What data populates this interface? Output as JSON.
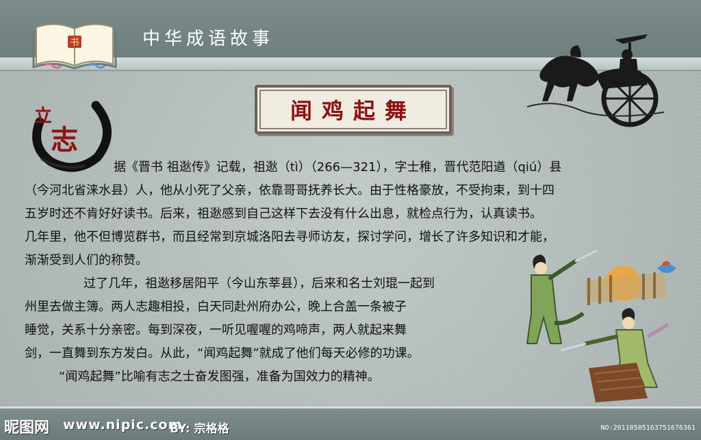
{
  "header": {
    "title": "中华成语故事",
    "book_icon_text": "书"
  },
  "main": {
    "story_title": "闻鸡起舞",
    "seal_text": "立志",
    "paragraphs": [
      {
        "lines": [
          "据《晋书 祖逖传》记载，祖逖（tì）（266—321），字士稚，晋代范阳遒（qiú）县",
          "（今河北省涞水县）人，他从小死了父亲，依靠哥哥抚养长大。由于性格豪放，不受拘束，到十四",
          "五岁时还不肯好好读书。后来，祖逖感到自己这样下去没有什么出息，就检点行为，认真读书。",
          "几年里，他不但博览群书，而且经常到京城洛阳去寻师访友，探讨学问，增长了许多知识和才能，",
          "渐渐受到人们的称赞。"
        ]
      },
      {
        "lines": [
          "过了几年，祖逖移居阳平（今山东莘县），后来和名士刘琨一起到",
          "州里去做主簿。两人志趣相投，白天同赴州府办公，晚上合盖一条被子",
          "睡觉，关系十分亲密。每到深夜，一听见喔喔的鸡啼声，两人就起来舞",
          "剑，一直舞到东方发白。从此，“闻鸡起舞”就成了他们每天必修的功课。"
        ]
      },
      {
        "lines": [
          "“闻鸡起舞”比喻有志之士奋发图强，准备为国效力的精神。"
        ]
      }
    ]
  },
  "footer": {
    "logo": "昵图网",
    "url": "www.nipic.com",
    "by": "BY:",
    "author": "宗格格",
    "number": "NO:20110505163751676361"
  },
  "colors": {
    "title_red": "#8b1111",
    "header_bg": "#6f7f7f",
    "page_bg": "#b3bdbb",
    "seal_red": "#8b1515"
  },
  "icons": {
    "book": "open-book-icon",
    "horse": "horse-chariot-illustration",
    "seal": "ink-seal-logo",
    "warriors": "sword-dance-illustration"
  }
}
